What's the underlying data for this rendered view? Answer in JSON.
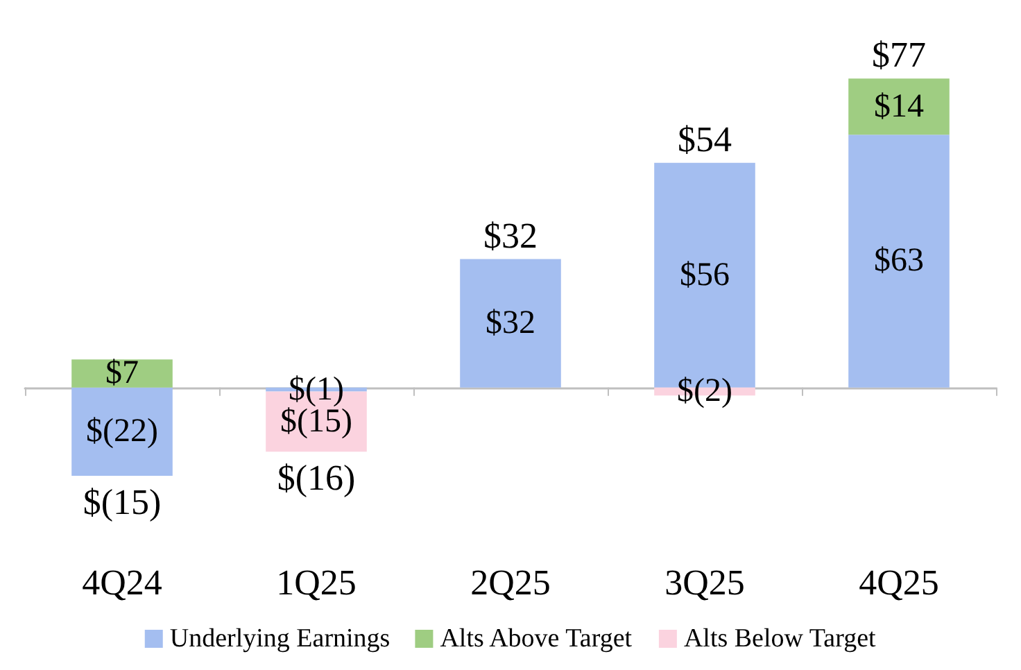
{
  "chart_data": {
    "type": "bar",
    "stacked": true,
    "categories": [
      "4Q24",
      "1Q25",
      "2Q25",
      "3Q25",
      "4Q25"
    ],
    "series": [
      {
        "name": "Underlying Earnings",
        "color": "#a4bef0",
        "values": [
          -22,
          -1,
          32,
          56,
          63
        ],
        "value_labels": [
          "$(22)",
          "$(1)",
          "$32",
          "$56",
          "$63"
        ]
      },
      {
        "name": "Alts Above Target",
        "color": "#9fcd82",
        "values": [
          7,
          null,
          null,
          null,
          14
        ],
        "value_labels": [
          "$7",
          null,
          null,
          null,
          "$14"
        ]
      },
      {
        "name": "Alts Below Target",
        "color": "#fbd3df",
        "values": [
          null,
          -15,
          null,
          -2,
          null
        ],
        "value_labels": [
          null,
          "$(15)",
          null,
          "$(2)",
          null
        ]
      }
    ],
    "totals": [
      "$(15)",
      "$(16)",
      "$32",
      "$54",
      "$77"
    ],
    "tick_labels": "x",
    "grid": false,
    "legend": "bottom"
  }
}
